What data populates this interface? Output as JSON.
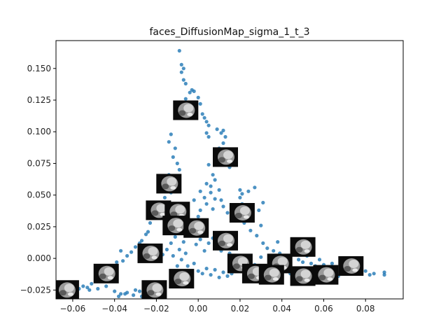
{
  "chart_data": {
    "type": "scatter",
    "title": "faces_DiffusionMap_sigma_1_t_3",
    "xlabel": "",
    "ylabel": "",
    "xlim": [
      -0.068,
      0.098
    ],
    "ylim": [
      -0.032,
      0.172
    ],
    "x_ticks": [
      -0.06,
      -0.04,
      -0.02,
      0.0,
      0.02,
      0.04,
      0.06,
      0.08
    ],
    "x_tick_labels": [
      "−0.06",
      "−0.04",
      "−0.02",
      "0.00",
      "0.02",
      "0.04",
      "0.06",
      "0.08"
    ],
    "y_ticks": [
      -0.025,
      0.0,
      0.025,
      0.05,
      0.075,
      0.1,
      0.125,
      0.15
    ],
    "y_tick_labels": [
      "−0.025",
      "0.000",
      "0.025",
      "0.050",
      "0.075",
      "0.100",
      "0.125",
      "0.150"
    ],
    "grid": false,
    "marker_color": "#1f77b4",
    "points": [
      [
        -0.009,
        0.164
      ],
      [
        -0.008,
        0.153
      ],
      [
        -0.008,
        0.147
      ],
      [
        -0.007,
        0.15
      ],
      [
        -0.007,
        0.141
      ],
      [
        -0.006,
        0.138
      ],
      [
        -0.004,
        0.131
      ],
      [
        -0.003,
        0.133
      ],
      [
        -0.002,
        0.132
      ],
      [
        -0.006,
        0.126
      ],
      [
        -0.003,
        0.123
      ],
      [
        0.0,
        0.127
      ],
      [
        0.001,
        0.122
      ],
      [
        -0.001,
        0.118
      ],
      [
        0.002,
        0.114
      ],
      [
        0.003,
        0.111
      ],
      [
        0.004,
        0.108
      ],
      [
        0.005,
        0.105
      ],
      [
        0.004,
        0.099
      ],
      [
        0.005,
        0.096
      ],
      [
        0.009,
        0.102
      ],
      [
        0.011,
        0.099
      ],
      [
        0.012,
        0.101
      ],
      [
        0.013,
        0.096
      ],
      [
        0.012,
        0.091
      ],
      [
        0.01,
        0.087
      ],
      [
        0.013,
        0.083
      ],
      [
        0.016,
        0.082
      ],
      [
        0.017,
        0.075
      ],
      [
        0.015,
        0.072
      ],
      [
        0.007,
        0.066
      ],
      [
        0.005,
        0.074
      ],
      [
        0.004,
        0.059
      ],
      [
        0.006,
        0.052
      ],
      [
        0.008,
        0.047
      ],
      [
        0.004,
        0.043
      ],
      [
        0.007,
        0.039
      ],
      [
        0.011,
        0.046
      ],
      [
        0.012,
        0.041
      ],
      [
        0.014,
        0.036
      ],
      [
        0.016,
        0.031
      ],
      [
        0.018,
        0.034
      ],
      [
        0.02,
        0.048
      ],
      [
        0.021,
        0.051
      ],
      [
        0.02,
        0.054
      ],
      [
        0.024,
        0.053
      ],
      [
        0.027,
        0.056
      ],
      [
        0.021,
        0.043
      ],
      [
        0.022,
        0.028
      ],
      [
        0.025,
        0.022
      ],
      [
        0.028,
        0.018
      ],
      [
        0.03,
        0.026
      ],
      [
        0.029,
        0.038
      ],
      [
        0.031,
        0.044
      ],
      [
        0.031,
        0.012
      ],
      [
        0.033,
        0.008
      ],
      [
        0.036,
        0.006
      ],
      [
        0.038,
        0.013
      ],
      [
        0.039,
        0.004
      ],
      [
        0.041,
        0.002
      ],
      [
        0.043,
        0.0
      ],
      [
        0.045,
        0.003
      ],
      [
        0.048,
        -0.001
      ],
      [
        0.05,
        -0.003
      ],
      [
        0.052,
        0.002
      ],
      [
        0.054,
        -0.004
      ],
      [
        0.056,
        -0.006
      ],
      [
        0.058,
        -0.001
      ],
      [
        0.06,
        -0.005
      ],
      [
        0.062,
        -0.008
      ],
      [
        0.064,
        -0.004
      ],
      [
        0.066,
        -0.007
      ],
      [
        0.068,
        -0.006
      ],
      [
        0.07,
        -0.009
      ],
      [
        0.072,
        -0.011
      ],
      [
        0.074,
        -0.01
      ],
      [
        0.076,
        -0.012
      ],
      [
        0.078,
        -0.011
      ],
      [
        0.08,
        -0.01
      ],
      [
        0.082,
        -0.013
      ],
      [
        0.084,
        -0.012
      ],
      [
        0.089,
        -0.011
      ],
      [
        0.089,
        -0.013
      ],
      [
        -0.013,
        0.098
      ],
      [
        -0.014,
        0.092
      ],
      [
        -0.011,
        0.087
      ],
      [
        -0.012,
        0.08
      ],
      [
        -0.01,
        0.075
      ],
      [
        -0.009,
        0.07
      ],
      [
        -0.01,
        0.065
      ],
      [
        -0.012,
        0.061
      ],
      [
        -0.014,
        0.066
      ],
      [
        -0.015,
        0.057
      ],
      [
        -0.013,
        0.052
      ],
      [
        -0.016,
        0.048
      ],
      [
        -0.018,
        0.043
      ],
      [
        -0.02,
        0.041
      ],
      [
        -0.021,
        0.034
      ],
      [
        -0.023,
        0.028
      ],
      [
        -0.024,
        0.021
      ],
      [
        -0.025,
        0.019
      ],
      [
        -0.027,
        0.014
      ],
      [
        -0.028,
        0.012
      ],
      [
        -0.03,
        0.009
      ],
      [
        -0.032,
        0.005
      ],
      [
        -0.034,
        0.002
      ],
      [
        -0.036,
        -0.002
      ],
      [
        -0.037,
        0.006
      ],
      [
        -0.039,
        -0.003
      ],
      [
        -0.041,
        -0.006
      ],
      [
        -0.043,
        -0.008
      ],
      [
        -0.045,
        -0.012
      ],
      [
        -0.047,
        -0.015
      ],
      [
        -0.049,
        -0.018
      ],
      [
        -0.051,
        -0.02
      ],
      [
        -0.053,
        -0.023
      ],
      [
        -0.055,
        -0.022
      ],
      [
        -0.057,
        -0.024
      ],
      [
        -0.059,
        -0.021
      ],
      [
        -0.052,
        -0.025
      ],
      [
        -0.048,
        -0.024
      ],
      [
        -0.044,
        -0.022
      ],
      [
        -0.04,
        -0.026
      ],
      [
        -0.037,
        -0.028
      ],
      [
        -0.034,
        -0.027
      ],
      [
        -0.031,
        -0.029
      ],
      [
        -0.028,
        -0.026
      ],
      [
        -0.026,
        -0.029
      ],
      [
        -0.038,
        -0.03
      ],
      [
        -0.035,
        -0.028
      ],
      [
        -0.03,
        -0.025
      ],
      [
        -0.027,
        -0.03
      ],
      [
        -0.024,
        -0.028
      ],
      [
        -0.021,
        -0.023
      ],
      [
        -0.018,
        -0.021
      ],
      [
        -0.016,
        -0.024
      ],
      [
        -0.019,
        -0.027
      ],
      [
        -0.005,
        -0.006
      ],
      [
        -0.002,
        -0.004
      ],
      [
        0.0,
        -0.01
      ],
      [
        0.002,
        -0.012
      ],
      [
        -0.003,
        -0.015
      ],
      [
        0.004,
        -0.008
      ],
      [
        0.006,
        -0.013
      ],
      [
        0.008,
        -0.009
      ],
      [
        0.01,
        -0.015
      ],
      [
        0.012,
        -0.011
      ],
      [
        0.014,
        -0.014
      ],
      [
        0.016,
        -0.012
      ],
      [
        -0.008,
        0.03
      ],
      [
        -0.006,
        0.024
      ],
      [
        -0.004,
        0.019
      ],
      [
        -0.002,
        0.027
      ],
      [
        0.0,
        0.033
      ],
      [
        0.001,
        0.038
      ],
      [
        0.002,
        0.029
      ],
      [
        0.003,
        0.022
      ],
      [
        0.001,
        0.015
      ],
      [
        -0.001,
        0.011
      ],
      [
        0.003,
        0.006
      ],
      [
        0.005,
        0.012
      ],
      [
        0.007,
        0.016
      ],
      [
        0.009,
        0.011
      ],
      [
        0.011,
        0.006
      ],
      [
        0.013,
        0.009
      ],
      [
        0.015,
        0.004
      ],
      [
        0.017,
        -0.002
      ],
      [
        0.019,
        0.001
      ],
      [
        0.021,
        -0.006
      ],
      [
        0.023,
        -0.003
      ],
      [
        0.025,
        -0.008
      ],
      [
        0.027,
        -0.005
      ],
      [
        0.029,
        -0.009
      ],
      [
        -0.011,
        0.017
      ],
      [
        -0.013,
        0.012
      ],
      [
        -0.015,
        0.007
      ],
      [
        -0.017,
        0.003
      ],
      [
        -0.019,
        -0.002
      ],
      [
        -0.012,
        0.002
      ],
      [
        -0.009,
        0.007
      ],
      [
        -0.007,
        0.013
      ],
      [
        -0.006,
        0.004
      ],
      [
        -0.008,
        -0.001
      ],
      [
        -0.01,
        -0.006
      ],
      [
        -0.013,
        -0.011
      ],
      [
        0.006,
        0.057
      ],
      [
        0.008,
        0.062
      ],
      [
        0.01,
        0.054
      ],
      [
        0.003,
        0.048
      ],
      [
        0.001,
        0.053
      ],
      [
        -0.002,
        0.046
      ],
      [
        0.03,
        0.001
      ],
      [
        0.034,
        -0.004
      ],
      [
        0.037,
        -0.007
      ],
      [
        0.04,
        -0.01
      ],
      [
        0.044,
        -0.012
      ],
      [
        0.047,
        -0.009
      ],
      [
        0.051,
        -0.013
      ],
      [
        0.055,
        -0.011
      ],
      [
        0.059,
        -0.013
      ],
      [
        0.063,
        -0.012
      ],
      [
        0.067,
        -0.014
      ]
    ],
    "thumbnails": [
      [
        -0.006,
        0.117
      ],
      [
        0.013,
        0.08
      ],
      [
        -0.014,
        0.059
      ],
      [
        -0.019,
        0.038
      ],
      [
        -0.01,
        0.037
      ],
      [
        0.021,
        0.036
      ],
      [
        -0.011,
        0.026
      ],
      [
        -0.001,
        0.024
      ],
      [
        0.013,
        0.014
      ],
      [
        -0.023,
        0.004
      ],
      [
        0.05,
        0.009
      ],
      [
        0.02,
        -0.004
      ],
      [
        0.039,
        -0.004
      ],
      [
        0.073,
        -0.006
      ],
      [
        -0.044,
        -0.012
      ],
      [
        -0.008,
        -0.016
      ],
      [
        0.027,
        -0.012
      ],
      [
        0.035,
        -0.013
      ],
      [
        0.05,
        -0.014
      ],
      [
        0.061,
        -0.013
      ],
      [
        -0.063,
        -0.025
      ],
      [
        -0.021,
        -0.025
      ]
    ]
  }
}
